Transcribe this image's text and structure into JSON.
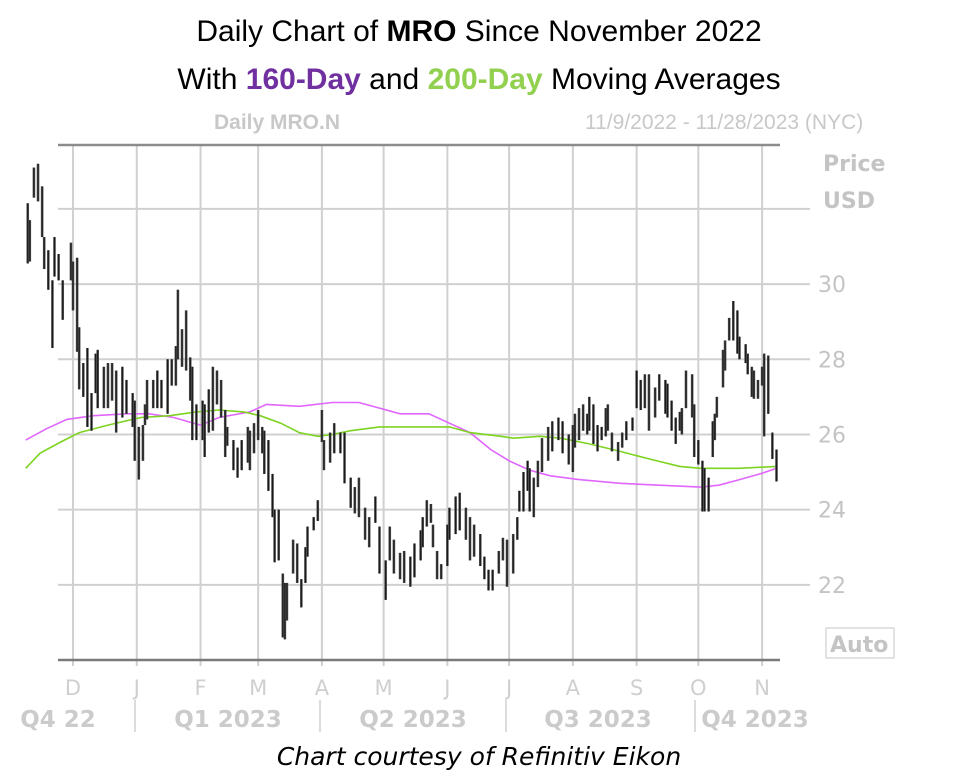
{
  "header": {
    "line1_pre": "Daily Chart of ",
    "line1_bold": "MRO",
    "line1_post": " Since November 2022",
    "line2_pre": "With ",
    "line2_ma1": "160-Day",
    "line2_mid": " and ",
    "line2_ma2": "200-Day",
    "line2_post": " Moving Averages",
    "ma1_color": "#7030a0",
    "ma2_color": "#92d050"
  },
  "sub": {
    "left": "Daily MRO.N",
    "right": "11/9/2022 - 11/28/2023 (NYC)"
  },
  "footer": "Chart courtesy of Refinitiv Eikon",
  "chart_data": {
    "type": "ohlc",
    "ylabel_line1": "Price",
    "ylabel_line2": "USD",
    "scale_button": "Auto",
    "ylim": [
      20.0,
      33.7
    ],
    "yticks": [
      22,
      24,
      26,
      28,
      30
    ],
    "grid": true,
    "months": [
      "D",
      "J",
      "F",
      "M",
      "A",
      "M",
      "J",
      "J",
      "A",
      "S",
      "O",
      "N"
    ],
    "month_dates": [
      "2022-12-01",
      "2023-01-01",
      "2023-02-01",
      "2023-03-01",
      "2023-04-01",
      "2023-05-01",
      "2023-06-01",
      "2023-07-01",
      "2023-08-01",
      "2023-09-01",
      "2023-10-01",
      "2023-11-01"
    ],
    "quarters": [
      "Q4 22",
      "Q1 2023",
      "Q2 2023",
      "Q3 2023",
      "Q4 2023"
    ],
    "bar_color": "#1a1a1a",
    "bars": [
      [
        "2022-11-09",
        32.15,
        30.55
      ],
      [
        "2022-11-10",
        31.7,
        30.6
      ],
      [
        "2022-11-12",
        33.1,
        32.3
      ],
      [
        "2022-11-14",
        33.2,
        32.2
      ],
      [
        "2022-11-16",
        32.6,
        31.25
      ],
      [
        "2022-11-17",
        31.25,
        30.4
      ],
      [
        "2022-11-19",
        30.9,
        29.85
      ],
      [
        "2022-11-21",
        30.1,
        28.3
      ],
      [
        "2022-11-22",
        31.25,
        30.2
      ],
      [
        "2022-11-24",
        30.8,
        30.1
      ],
      [
        "2022-11-26",
        30.1,
        29.05
      ],
      [
        "2022-11-30",
        31.1,
        30.1
      ],
      [
        "2022-12-01",
        30.6,
        29.3
      ],
      [
        "2022-12-03",
        30.7,
        28.2
      ],
      [
        "2022-12-04",
        28.85,
        27.2
      ],
      [
        "2022-12-06",
        27.9,
        27.0
      ],
      [
        "2022-12-08",
        28.3,
        26.2
      ],
      [
        "2022-12-10",
        27.1,
        26.1
      ],
      [
        "2022-12-12",
        28.15,
        27.1
      ],
      [
        "2022-12-13",
        28.25,
        26.7
      ],
      [
        "2022-12-16",
        27.8,
        26.7
      ],
      [
        "2022-12-18",
        27.9,
        26.7
      ],
      [
        "2022-12-20",
        27.9,
        26.9
      ],
      [
        "2022-12-22",
        27.7,
        26.05
      ],
      [
        "2022-12-25",
        27.8,
        26.45
      ],
      [
        "2022-12-27",
        27.45,
        26.55
      ],
      [
        "2022-12-30",
        27.1,
        26.2
      ],
      [
        "2022-12-31",
        26.9,
        25.3
      ],
      [
        "2023-01-02",
        26.2,
        24.8
      ],
      [
        "2023-01-04",
        26.25,
        25.3
      ],
      [
        "2023-01-05",
        26.8,
        26.25
      ],
      [
        "2023-01-06",
        27.45,
        26.4
      ],
      [
        "2023-01-09",
        27.45,
        26.7
      ],
      [
        "2023-01-11",
        27.7,
        26.7
      ],
      [
        "2023-01-13",
        27.45,
        26.7
      ],
      [
        "2023-01-16",
        28.0,
        26.55
      ],
      [
        "2023-01-18",
        28.0,
        27.3
      ],
      [
        "2023-01-20",
        28.35,
        27.3
      ],
      [
        "2023-01-21",
        29.85,
        28.0
      ],
      [
        "2023-01-23",
        28.8,
        27.8
      ],
      [
        "2023-01-25",
        29.3,
        27.7
      ],
      [
        "2023-01-27",
        28.05,
        26.9
      ],
      [
        "2023-01-28",
        27.8,
        25.85
      ],
      [
        "2023-01-30",
        26.8,
        25.85
      ],
      [
        "2023-02-02",
        26.9,
        25.85
      ],
      [
        "2023-02-03",
        26.8,
        25.4
      ],
      [
        "2023-02-05",
        27.2,
        26.05
      ],
      [
        "2023-02-07",
        27.8,
        26.1
      ],
      [
        "2023-02-09",
        27.7,
        26.8
      ],
      [
        "2023-02-11",
        27.45,
        26.45
      ],
      [
        "2023-02-13",
        26.65,
        25.4
      ],
      [
        "2023-02-14",
        26.2,
        25.7
      ],
      [
        "2023-02-17",
        25.85,
        25.05
      ],
      [
        "2023-02-19",
        25.65,
        24.85
      ],
      [
        "2023-02-21",
        25.85,
        25.05
      ],
      [
        "2023-02-24",
        26.2,
        25.25
      ],
      [
        "2023-02-25",
        26.1,
        25.05
      ],
      [
        "2023-02-27",
        26.3,
        25.5
      ],
      [
        "2023-03-01",
        26.65,
        25.85
      ],
      [
        "2023-03-03",
        26.2,
        25.5
      ],
      [
        "2023-03-04",
        26.1,
        24.95
      ],
      [
        "2023-03-06",
        25.85,
        24.5
      ],
      [
        "2023-03-08",
        24.95,
        23.8
      ],
      [
        "2023-03-09",
        24.0,
        22.6
      ],
      [
        "2023-03-11",
        24.0,
        22.65
      ],
      [
        "2023-03-13",
        22.3,
        20.6
      ],
      [
        "2023-03-14",
        22.05,
        20.55
      ],
      [
        "2023-03-15",
        22.05,
        21.05
      ],
      [
        "2023-03-18",
        23.2,
        22.3
      ],
      [
        "2023-03-20",
        23.1,
        22.05
      ],
      [
        "2023-03-22",
        22.15,
        21.4
      ],
      [
        "2023-03-24",
        23.0,
        22.05
      ],
      [
        "2023-03-25",
        23.55,
        22.75
      ],
      [
        "2023-03-28",
        23.8,
        23.45
      ],
      [
        "2023-03-30",
        24.25,
        23.7
      ],
      [
        "2023-04-01",
        26.65,
        25.8
      ],
      [
        "2023-04-02",
        25.85,
        25.05
      ],
      [
        "2023-04-05",
        26.05,
        25.25
      ],
      [
        "2023-04-07",
        26.3,
        25.5
      ],
      [
        "2023-04-10",
        26.05,
        25.5
      ],
      [
        "2023-04-12",
        26.05,
        24.7
      ],
      [
        "2023-04-15",
        24.85,
        24.05
      ],
      [
        "2023-04-17",
        24.6,
        23.9
      ],
      [
        "2023-04-19",
        24.85,
        23.8
      ],
      [
        "2023-04-22",
        24.05,
        23.2
      ],
      [
        "2023-04-24",
        23.8,
        23.0
      ],
      [
        "2023-04-27",
        24.35,
        23.65
      ],
      [
        "2023-04-29",
        23.55,
        22.3
      ],
      [
        "2023-05-02",
        22.65,
        21.6
      ],
      [
        "2023-05-04",
        23.55,
        22.65
      ],
      [
        "2023-05-06",
        23.2,
        22.3
      ],
      [
        "2023-05-09",
        22.85,
        22.15
      ],
      [
        "2023-05-11",
        22.9,
        22.05
      ],
      [
        "2023-05-14",
        22.75,
        21.95
      ],
      [
        "2023-05-16",
        23.1,
        22.2
      ],
      [
        "2023-05-19",
        23.45,
        22.65
      ],
      [
        "2023-05-20",
        23.8,
        23.0
      ],
      [
        "2023-05-22",
        24.25,
        23.55
      ],
      [
        "2023-05-24",
        24.15,
        23.65
      ],
      [
        "2023-05-25",
        23.6,
        23.0
      ],
      [
        "2023-05-27",
        22.9,
        22.15
      ],
      [
        "2023-05-29",
        22.55,
        22.15
      ],
      [
        "2023-06-01",
        23.6,
        22.5
      ],
      [
        "2023-06-02",
        24.05,
        23.2
      ],
      [
        "2023-06-05",
        24.35,
        23.35
      ],
      [
        "2023-06-07",
        24.45,
        23.45
      ],
      [
        "2023-06-10",
        24.05,
        23.2
      ],
      [
        "2023-06-12",
        23.8,
        22.65
      ],
      [
        "2023-06-14",
        23.6,
        22.75
      ],
      [
        "2023-06-17",
        23.35,
        22.5
      ],
      [
        "2023-06-19",
        22.75,
        22.15
      ],
      [
        "2023-06-21",
        22.4,
        21.85
      ],
      [
        "2023-06-23",
        22.4,
        21.85
      ],
      [
        "2023-06-26",
        22.9,
        22.3
      ],
      [
        "2023-06-28",
        23.25,
        22.65
      ],
      [
        "2023-06-30",
        23.2,
        21.95
      ],
      [
        "2023-07-03",
        23.35,
        22.3
      ],
      [
        "2023-07-05",
        23.8,
        23.2
      ],
      [
        "2023-07-06",
        24.5,
        23.95
      ],
      [
        "2023-07-08",
        25.0,
        23.95
      ],
      [
        "2023-07-10",
        25.3,
        24.5
      ],
      [
        "2023-07-11",
        25.1,
        23.95
      ],
      [
        "2023-07-13",
        24.85,
        23.8
      ],
      [
        "2023-07-15",
        25.3,
        24.6
      ],
      [
        "2023-07-17",
        25.9,
        25.0
      ],
      [
        "2023-07-20",
        26.2,
        25.3
      ],
      [
        "2023-07-22",
        26.35,
        25.55
      ],
      [
        "2023-07-25",
        26.45,
        25.85
      ],
      [
        "2023-07-27",
        26.35,
        25.5
      ],
      [
        "2023-07-30",
        26.0,
        25.2
      ],
      [
        "2023-08-01",
        26.25,
        25.0
      ],
      [
        "2023-08-02",
        26.55,
        25.65
      ],
      [
        "2023-08-04",
        26.7,
        25.85
      ],
      [
        "2023-08-06",
        26.8,
        26.1
      ],
      [
        "2023-08-08",
        26.55,
        26.0
      ],
      [
        "2023-08-09",
        27.0,
        26.1
      ],
      [
        "2023-08-11",
        26.8,
        25.75
      ],
      [
        "2023-08-13",
        26.25,
        25.55
      ],
      [
        "2023-08-15",
        26.2,
        25.85
      ],
      [
        "2023-08-17",
        26.7,
        25.95
      ],
      [
        "2023-08-18",
        26.8,
        26.1
      ],
      [
        "2023-08-20",
        26.05,
        25.55
      ],
      [
        "2023-08-23",
        25.8,
        25.3
      ],
      [
        "2023-08-25",
        26.05,
        25.65
      ],
      [
        "2023-08-27",
        26.35,
        25.85
      ],
      [
        "2023-08-30",
        26.45,
        26.1
      ],
      [
        "2023-09-01",
        27.7,
        26.7
      ],
      [
        "2023-09-03",
        27.45,
        26.65
      ],
      [
        "2023-09-05",
        27.6,
        26.7
      ],
      [
        "2023-09-07",
        27.6,
        26.1
      ],
      [
        "2023-09-10",
        27.25,
        26.45
      ],
      [
        "2023-09-12",
        27.6,
        26.9
      ],
      [
        "2023-09-15",
        27.45,
        26.55
      ],
      [
        "2023-09-16",
        27.35,
        26.45
      ],
      [
        "2023-09-18",
        26.9,
        26.1
      ],
      [
        "2023-09-20",
        26.45,
        25.75
      ],
      [
        "2023-09-22",
        26.6,
        26.1
      ],
      [
        "2023-09-23",
        26.7,
        26.0
      ],
      [
        "2023-09-25",
        27.7,
        26.7
      ],
      [
        "2023-09-28",
        27.6,
        26.45
      ],
      [
        "2023-09-29",
        26.8,
        25.4
      ],
      [
        "2023-10-01",
        25.85,
        25.2
      ],
      [
        "2023-10-03",
        25.3,
        23.95
      ],
      [
        "2023-10-04",
        25.1,
        23.95
      ],
      [
        "2023-10-06",
        24.85,
        23.95
      ],
      [
        "2023-10-08",
        26.35,
        25.4
      ],
      [
        "2023-10-09",
        26.55,
        25.85
      ],
      [
        "2023-10-10",
        27.0,
        26.45
      ],
      [
        "2023-10-13",
        28.25,
        27.25
      ],
      [
        "2023-10-14",
        28.5,
        27.7
      ],
      [
        "2023-10-16",
        29.1,
        28.5
      ],
      [
        "2023-10-18",
        29.55,
        28.5
      ],
      [
        "2023-10-20",
        29.3,
        28.15
      ],
      [
        "2023-10-21",
        28.6,
        28.0
      ],
      [
        "2023-10-24",
        28.4,
        27.9
      ],
      [
        "2023-10-25",
        28.15,
        27.6
      ],
      [
        "2023-10-27",
        27.8,
        27.0
      ],
      [
        "2023-10-28",
        27.7,
        26.95
      ],
      [
        "2023-10-30",
        27.45,
        26.95
      ],
      [
        "2023-11-01",
        27.8,
        27.3
      ],
      [
        "2023-11-02",
        28.15,
        25.95
      ],
      [
        "2023-11-04",
        28.1,
        26.55
      ],
      [
        "2023-11-06",
        26.05,
        25.35
      ],
      [
        "2023-11-08",
        25.6,
        24.75
      ]
    ],
    "series": [
      {
        "name": "160-Day",
        "color": "#e066ff",
        "points": [
          [
            "2022-11-08",
            25.85
          ],
          [
            "2022-11-18",
            26.15
          ],
          [
            "2022-11-28",
            26.4
          ],
          [
            "2022-12-11",
            26.5
          ],
          [
            "2022-12-27",
            26.55
          ],
          [
            "2023-01-07",
            26.55
          ],
          [
            "2023-01-19",
            26.45
          ],
          [
            "2023-02-01",
            26.25
          ],
          [
            "2023-02-10",
            26.45
          ],
          [
            "2023-02-25",
            26.6
          ],
          [
            "2023-03-05",
            26.8
          ],
          [
            "2023-03-21",
            26.75
          ],
          [
            "2023-04-06",
            26.85
          ],
          [
            "2023-04-19",
            26.85
          ],
          [
            "2023-04-29",
            26.7
          ],
          [
            "2023-05-09",
            26.55
          ],
          [
            "2023-05-23",
            26.55
          ],
          [
            "2023-06-02",
            26.3
          ],
          [
            "2023-06-12",
            26.05
          ],
          [
            "2023-06-22",
            25.6
          ],
          [
            "2023-07-01",
            25.3
          ],
          [
            "2023-07-11",
            25.05
          ],
          [
            "2023-07-21",
            24.9
          ],
          [
            "2023-08-04",
            24.8
          ],
          [
            "2023-08-24",
            24.7
          ],
          [
            "2023-09-12",
            24.65
          ],
          [
            "2023-10-02",
            24.6
          ],
          [
            "2023-10-11",
            24.65
          ],
          [
            "2023-10-21",
            24.8
          ],
          [
            "2023-10-31",
            24.95
          ],
          [
            "2023-11-08",
            25.1
          ]
        ]
      },
      {
        "name": "200-Day",
        "color": "#7ed321",
        "points": [
          [
            "2022-11-08",
            25.1
          ],
          [
            "2022-11-15",
            25.5
          ],
          [
            "2022-11-25",
            25.8
          ],
          [
            "2022-12-04",
            26.05
          ],
          [
            "2022-12-18",
            26.25
          ],
          [
            "2023-01-03",
            26.45
          ],
          [
            "2023-01-17",
            26.5
          ],
          [
            "2023-01-30",
            26.6
          ],
          [
            "2023-02-10",
            26.65
          ],
          [
            "2023-02-22",
            26.6
          ],
          [
            "2023-03-02",
            26.5
          ],
          [
            "2023-03-12",
            26.3
          ],
          [
            "2023-03-21",
            26.05
          ],
          [
            "2023-03-30",
            25.95
          ],
          [
            "2023-04-06",
            26.0
          ],
          [
            "2023-04-15",
            26.1
          ],
          [
            "2023-04-29",
            26.2
          ],
          [
            "2023-05-14",
            26.2
          ],
          [
            "2023-05-24",
            26.2
          ],
          [
            "2023-06-02",
            26.2
          ],
          [
            "2023-06-12",
            26.05
          ],
          [
            "2023-06-27",
            25.95
          ],
          [
            "2023-07-03",
            25.9
          ],
          [
            "2023-07-16",
            25.95
          ],
          [
            "2023-07-26",
            25.9
          ],
          [
            "2023-08-09",
            25.75
          ],
          [
            "2023-08-24",
            25.55
          ],
          [
            "2023-09-07",
            25.35
          ],
          [
            "2023-09-22",
            25.15
          ],
          [
            "2023-10-02",
            25.1
          ],
          [
            "2023-10-21",
            25.1
          ],
          [
            "2023-11-08",
            25.15
          ]
        ]
      }
    ]
  }
}
